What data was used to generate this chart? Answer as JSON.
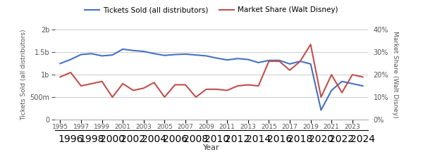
{
  "years": [
    1995,
    1996,
    1997,
    1998,
    1999,
    2000,
    2001,
    2002,
    2003,
    2004,
    2005,
    2006,
    2007,
    2008,
    2009,
    2010,
    2011,
    2012,
    2013,
    2014,
    2015,
    2016,
    2017,
    2018,
    2019,
    2020,
    2021,
    2022,
    2023,
    2024
  ],
  "tickets_sold": [
    1250000000.0,
    1340000000.0,
    1450000000.0,
    1470000000.0,
    1420000000.0,
    1440000000.0,
    1570000000.0,
    1540000000.0,
    1520000000.0,
    1470000000.0,
    1430000000.0,
    1450000000.0,
    1460000000.0,
    1440000000.0,
    1420000000.0,
    1370000000.0,
    1330000000.0,
    1360000000.0,
    1340000000.0,
    1270000000.0,
    1320000000.0,
    1320000000.0,
    1240000000.0,
    1300000000.0,
    1240000000.0,
    210000000.0,
    650000000.0,
    850000000.0,
    800000000.0,
    750000000.0
  ],
  "market_share": [
    0.19,
    0.21,
    0.15,
    0.16,
    0.17,
    0.1,
    0.16,
    0.13,
    0.14,
    0.165,
    0.1,
    0.155,
    0.155,
    0.1,
    0.135,
    0.135,
    0.13,
    0.15,
    0.155,
    0.15,
    0.26,
    0.26,
    0.22,
    0.26,
    0.335,
    0.1,
    0.2,
    0.12,
    0.2,
    0.19
  ],
  "blue_color": "#4472C4",
  "red_color": "#C0504D",
  "title_blue": "Tickets Sold (all distributors)",
  "title_red": "Market Share (Walt Disney)",
  "xlabel": "Year",
  "ylabel_left": "Tickets Sold (all distributors)",
  "ylabel_right": "Market Share (Walt Disney)",
  "ylim_left": [
    0,
    2000000000.0
  ],
  "ylim_right": [
    0,
    0.4
  ],
  "yticks_left": [
    0,
    500000000.0,
    1000000000.0,
    1500000000.0,
    2000000000.0
  ],
  "ytick_labels_left": [
    "0",
    "500m",
    "1b",
    "1.5b",
    "2b"
  ],
  "yticks_right": [
    0,
    0.1,
    0.2,
    0.3,
    0.4
  ],
  "ytick_labels_right": [
    "0%",
    "10%",
    "20%",
    "30%",
    "40%"
  ],
  "xticks_odd": [
    1995,
    1997,
    1999,
    2001,
    2003,
    2005,
    2007,
    2009,
    2011,
    2013,
    2015,
    2017,
    2019,
    2021,
    2023
  ],
  "xticks_even": [
    1996,
    1998,
    2000,
    2002,
    2004,
    2006,
    2008,
    2010,
    2012,
    2014,
    2016,
    2018,
    2020,
    2022,
    2024
  ],
  "background_color": "#ffffff",
  "grid_color": "#cccccc"
}
